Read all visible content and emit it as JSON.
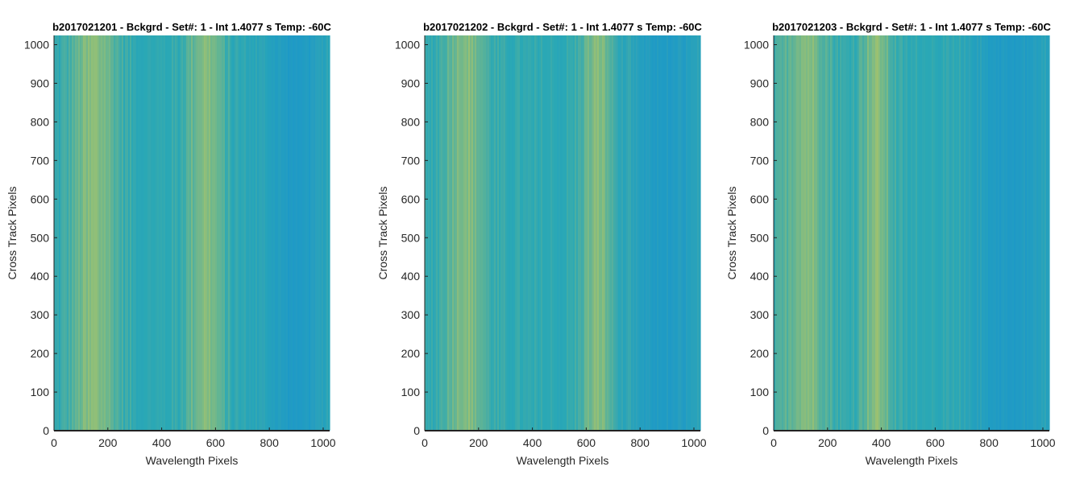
{
  "chart_data": [
    {
      "type": "heatmap",
      "title": "b2017021201 - Bckgrd - Set#: 1 - Int 1.4077 s Temp: -60C",
      "xlabel": "Wavelength Pixels",
      "ylabel": "Cross Track Pixels",
      "xlim": [
        0,
        1024
      ],
      "ylim": [
        0,
        1024
      ],
      "xticks": [
        0,
        200,
        400,
        600,
        800,
        1000
      ],
      "yticks": [
        0,
        100,
        200,
        300,
        400,
        500,
        600,
        700,
        800,
        900,
        1000
      ],
      "colormap": "parula",
      "bright_columns": [
        [
          150,
          90
        ],
        [
          560,
          70
        ]
      ],
      "dim_columns": [
        [
          900,
          130
        ]
      ]
    },
    {
      "type": "heatmap",
      "title": "b2017021202 - Bckgrd - Set#: 1 - Int 1.4077 s Temp: -60C",
      "xlabel": "Wavelength Pixels",
      "ylabel": "Cross Track Pixels",
      "xlim": [
        0,
        1024
      ],
      "ylim": [
        0,
        1024
      ],
      "xticks": [
        0,
        200,
        400,
        600,
        800,
        1000
      ],
      "yticks": [
        0,
        100,
        200,
        300,
        400,
        500,
        600,
        700,
        800,
        900,
        1000
      ],
      "colormap": "parula",
      "bright_columns": [
        [
          150,
          80
        ],
        [
          640,
          60
        ]
      ],
      "dim_columns": [
        [
          900,
          150
        ]
      ]
    },
    {
      "type": "heatmap",
      "title": "b2017021203 - Bckgrd - Set#: 1 - Int 1.4077 s Temp: -60C",
      "xlabel": "Wavelength Pixels",
      "ylabel": "Cross Track Pixels",
      "xlim": [
        0,
        1024
      ],
      "ylim": [
        0,
        1024
      ],
      "xticks": [
        0,
        200,
        400,
        600,
        800,
        1000
      ],
      "yticks": [
        0,
        100,
        200,
        300,
        400,
        500,
        600,
        700,
        800,
        900,
        1000
      ],
      "colormap": "parula",
      "bright_columns": [
        [
          120,
          90
        ],
        [
          380,
          60
        ]
      ],
      "dim_columns": [
        [
          880,
          160
        ]
      ]
    }
  ],
  "colors": {
    "base": "#2aa8b5",
    "bright": "#a8c46a",
    "dim": "#1a95cc",
    "axis": "#000000",
    "background": "#ffffff"
  }
}
